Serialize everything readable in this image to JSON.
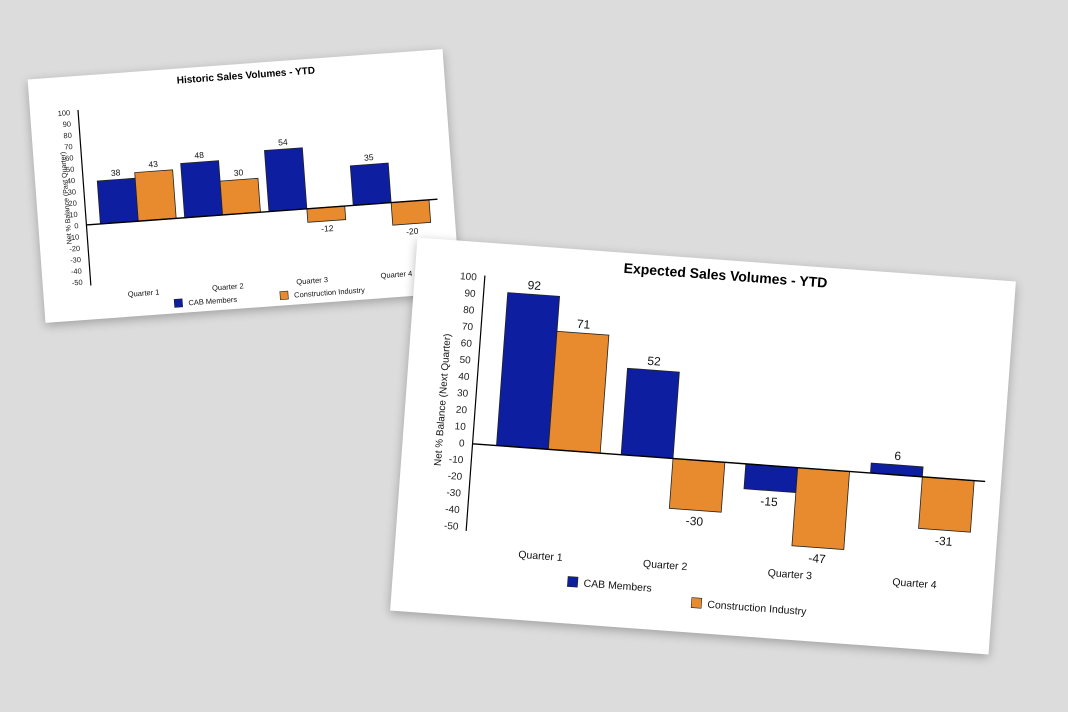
{
  "chart_data": [
    {
      "type": "bar",
      "title": "Historic Sales Volumes - YTD",
      "ylabel": "Net % Balance (Past Quarter)",
      "xlabel": "",
      "categories": [
        "Quarter 1",
        "Quarter 2",
        "Quarter 3",
        "Quarter 4"
      ],
      "ylim": [
        -50,
        100
      ],
      "yticks": [
        100,
        90,
        80,
        70,
        60,
        50,
        40,
        30,
        20,
        10,
        0,
        -10,
        -20,
        -30,
        -40,
        -50
      ],
      "series": [
        {
          "name": "CAB Members",
          "values": [
            38,
            48,
            54,
            35
          ],
          "color": "#0d1fa0"
        },
        {
          "name": "Construction Industry",
          "values": [
            43,
            30,
            -12,
            -20
          ],
          "color": "#e88a2e"
        }
      ],
      "legend": "bottom",
      "grid": false
    },
    {
      "type": "bar",
      "title": "Expected Sales Volumes - YTD",
      "ylabel": "Net % Balance (Next Quarter)",
      "xlabel": "",
      "categories": [
        "Quarter 1",
        "Quarter 2",
        "Quarter 3",
        "Quarter 4"
      ],
      "ylim": [
        -50,
        100
      ],
      "yticks": [
        100,
        90,
        80,
        70,
        60,
        50,
        40,
        30,
        20,
        10,
        0,
        -10,
        -20,
        -30,
        -40,
        -50
      ],
      "series": [
        {
          "name": "CAB Members",
          "values": [
            92,
            52,
            -15,
            6
          ],
          "color": "#0d1fa0"
        },
        {
          "name": "Construction Industry",
          "values": [
            71,
            -30,
            -47,
            -31
          ],
          "color": "#e88a2e"
        }
      ],
      "legend": "bottom",
      "grid": false
    }
  ]
}
